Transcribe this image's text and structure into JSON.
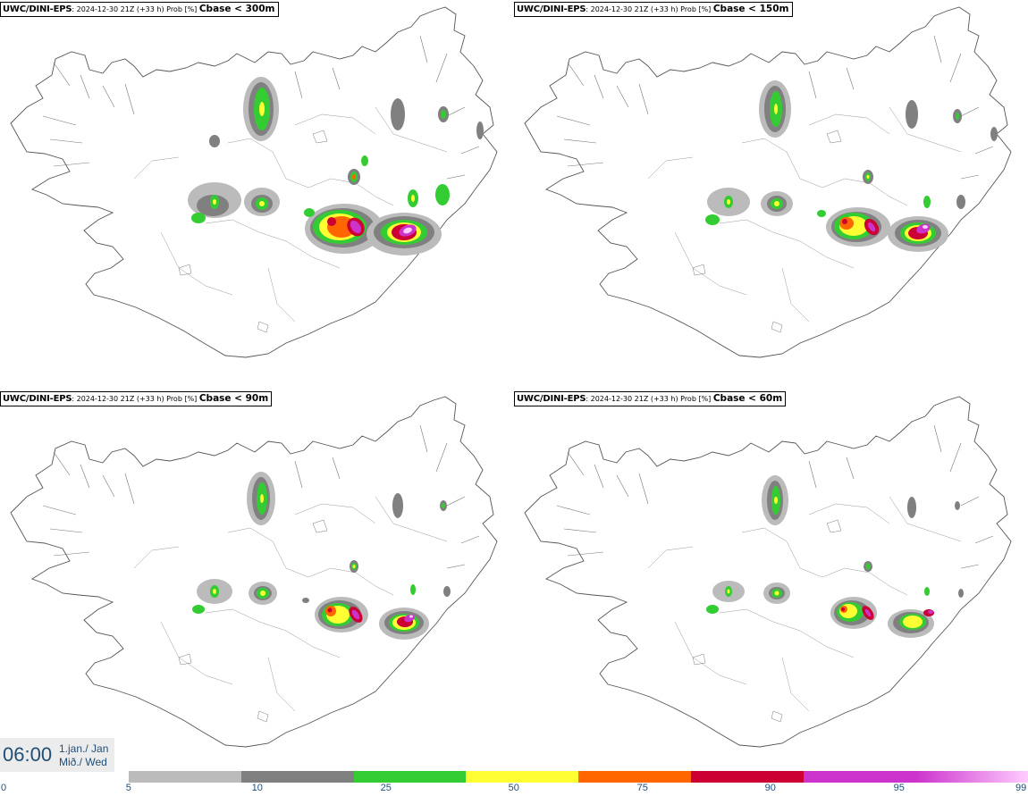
{
  "panels": [
    {
      "source": "UWC/DINI-EPS",
      "meta": ": 2024-12-30 21Z (+33 h) Prob [%] ",
      "cbase": "Cbase < 300m"
    },
    {
      "source": "UWC/DINI-EPS",
      "meta": ": 2024-12-30 21Z (+33 h) Prob [%] ",
      "cbase": "Cbase < 150m"
    },
    {
      "source": "UWC/DINI-EPS",
      "meta": ": 2024-12-30 21Z (+33 h) Prob [%] ",
      "cbase": "Cbase < 90m"
    },
    {
      "source": "UWC/DINI-EPS",
      "meta": ": 2024-12-30 21Z (+33 h) Prob [%] ",
      "cbase": "Cbase < 60m"
    }
  ],
  "time": {
    "clock": "06:00",
    "date_line1": "1.jan./ Jan",
    "date_line2": "Mið./ Wed"
  },
  "legend": {
    "ticks": [
      "0",
      "5",
      "10",
      "25",
      "50",
      "75",
      "90",
      "95",
      "99"
    ],
    "colors": [
      "#bbbbbb",
      "#808080",
      "#33cc33",
      "#ffff33",
      "#ff6600",
      "#cc0033",
      "#cc33cc",
      "#ffccff"
    ]
  }
}
